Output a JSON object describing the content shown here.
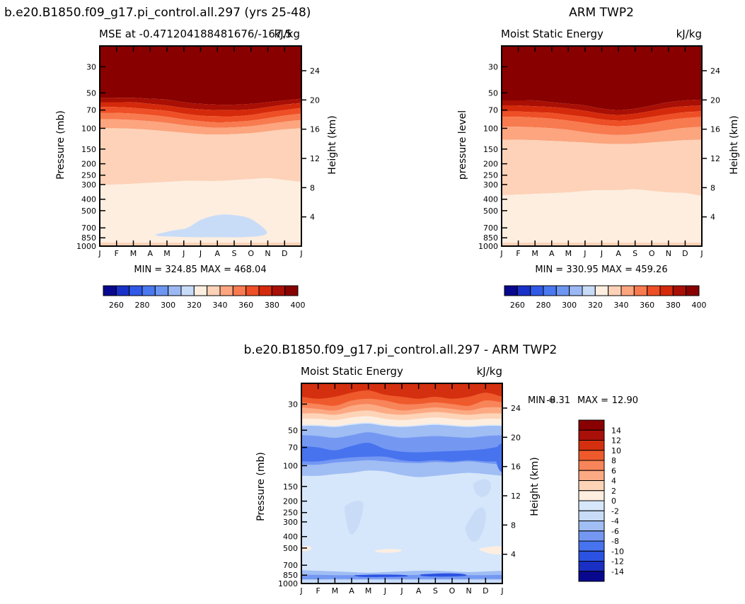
{
  "page": {
    "left_title": "b.e20.B1850.f09_g17.pi_control.all.297 (yrs 25-48)",
    "right_title": "ARM TWP2",
    "bottom_title": "b.e20.B1850.f09_g17.pi_control.all.297 - ARM TWP2"
  },
  "colors": {
    "abs_levels": [
      "#08088f",
      "#1931c8",
      "#2f59e6",
      "#4a78f0",
      "#6d96f2",
      "#9bb8f4",
      "#c8dcf8",
      "#fdeee0",
      "#fdd2b8",
      "#fca57f",
      "#f87a4f",
      "#ee4f26",
      "#d42a0b",
      "#a90f04",
      "#880000"
    ],
    "diff_levels": [
      "#08088f",
      "#1a2fc4",
      "#2b52e2",
      "#4873ef",
      "#7498f2",
      "#a0bdf4",
      "#c8dcf8",
      "#d6e7fb",
      "#fdeee0",
      "#fdd4b8",
      "#fcaa84",
      "#f8845a",
      "#ef5a2c",
      "#d4300f",
      "#a9100a",
      "#880000"
    ]
  },
  "chart_data": [
    {
      "type": "heatmap",
      "name": "model",
      "subtitle_left": "MSE at -0.471204188481676/-167.5",
      "subtitle_right": "kJ/kg",
      "ylabel": "Pressure (mb)",
      "ylabel_right": "Height (km)",
      "x_ticks": [
        "J",
        "F",
        "M",
        "A",
        "M",
        "J",
        "J",
        "A",
        "S",
        "O",
        "N",
        "D",
        "J"
      ],
      "y_ticks": [
        "30",
        "50",
        "70",
        "100",
        "150",
        "200",
        "250",
        "300",
        "400",
        "500",
        "700",
        "850",
        "1000"
      ],
      "y_right_ticks": [
        "24",
        "20",
        "16",
        "12",
        "8",
        "4"
      ],
      "min": "324.85",
      "max": "468.04",
      "stats": "MIN = 324.85  MAX = 468.04",
      "ylim_mb": [
        1000,
        20
      ],
      "contour_levels": [
        260,
        270,
        280,
        290,
        300,
        310,
        320,
        330,
        340,
        350,
        360,
        370,
        380,
        390,
        400
      ],
      "bands": [
        {
          "color_index": 14,
          "top": [
            20,
            20,
            20,
            20,
            20,
            20,
            20,
            20,
            20,
            20,
            20,
            20,
            20
          ],
          "bottom": [
            55,
            55,
            55,
            56,
            57,
            60,
            62,
            63,
            63,
            62,
            60,
            58,
            56
          ]
        },
        {
          "color_index": 13,
          "top": [
            55,
            55,
            55,
            56,
            57,
            60,
            62,
            63,
            63,
            62,
            60,
            58,
            56
          ],
          "bottom": [
            60,
            60,
            60,
            62,
            64,
            67,
            69,
            70,
            70,
            69,
            66,
            63,
            61
          ]
        },
        {
          "color_index": 12,
          "top": [
            60,
            60,
            60,
            62,
            64,
            67,
            69,
            70,
            70,
            69,
            66,
            63,
            61
          ],
          "bottom": [
            66,
            66,
            67,
            69,
            71,
            75,
            78,
            79,
            79,
            77,
            73,
            70,
            67
          ]
        },
        {
          "color_index": 11,
          "top": [
            66,
            66,
            67,
            69,
            71,
            75,
            78,
            79,
            79,
            77,
            73,
            70,
            67
          ],
          "bottom": [
            74,
            74,
            75,
            77,
            80,
            84,
            87,
            89,
            88,
            86,
            82,
            78,
            75
          ]
        },
        {
          "color_index": 10,
          "top": [
            74,
            74,
            75,
            77,
            80,
            84,
            87,
            89,
            88,
            86,
            82,
            78,
            75
          ],
          "bottom": [
            84,
            84,
            85,
            87,
            90,
            94,
            97,
            99,
            98,
            96,
            92,
            88,
            85
          ]
        },
        {
          "color_index": 9,
          "top": [
            84,
            84,
            85,
            87,
            90,
            94,
            97,
            99,
            98,
            96,
            92,
            88,
            85
          ],
          "bottom": [
            100,
            100,
            101,
            103,
            106,
            109,
            112,
            113,
            112,
            110,
            106,
            102,
            100
          ]
        },
        {
          "color_index": 8,
          "top": [
            100,
            100,
            101,
            103,
            106,
            109,
            112,
            113,
            112,
            110,
            106,
            102,
            100
          ],
          "bottom": [
            300,
            300,
            295,
            290,
            285,
            280,
            280,
            280,
            275,
            270,
            265,
            275,
            285
          ]
        },
        {
          "color_index": 7,
          "top": [
            300,
            300,
            295,
            290,
            285,
            280,
            280,
            280,
            275,
            270,
            265,
            275,
            285
          ],
          "bottom": [
            930,
            930,
            930,
            930,
            930,
            930,
            930,
            930,
            930,
            930,
            930,
            930,
            930
          ]
        },
        {
          "color_index": 8,
          "top": [
            930,
            930,
            930,
            930,
            930,
            930,
            930,
            930,
            930,
            930,
            930,
            930,
            930
          ],
          "bottom": [
            1000,
            1000,
            1000,
            1000,
            1000,
            1000,
            1000,
            1000,
            1000,
            1000,
            1000,
            1000,
            1000
          ]
        }
      ],
      "blob_color_index": 6,
      "blob": [
        [
          3.4,
          790
        ],
        [
          4.3,
          740
        ],
        [
          5.2,
          700
        ],
        [
          6,
          600
        ],
        [
          7,
          545
        ],
        [
          8,
          545
        ],
        [
          9,
          590
        ],
        [
          9.9,
          740
        ],
        [
          9.7,
          810
        ],
        [
          8.5,
          840
        ],
        [
          7,
          840
        ],
        [
          5.5,
          840
        ],
        [
          4.3,
          830
        ],
        [
          3.5,
          820
        ]
      ],
      "colorbar_labels": [
        "260",
        "280",
        "300",
        "320",
        "340",
        "360",
        "380",
        "400"
      ]
    },
    {
      "type": "heatmap",
      "name": "obs",
      "subtitle_left": "Moist Static Energy",
      "subtitle_right": "kJ/kg",
      "ylabel": "pressure level",
      "ylabel_right": "Height (km)",
      "x_ticks": [
        "J",
        "F",
        "M",
        "A",
        "M",
        "J",
        "J",
        "A",
        "S",
        "O",
        "N",
        "D",
        "J"
      ],
      "y_ticks": [
        "30",
        "50",
        "70",
        "100",
        "150",
        "200",
        "250",
        "300",
        "400",
        "500",
        "700",
        "850",
        "1000"
      ],
      "y_right_ticks": [
        "24",
        "20",
        "16",
        "12",
        "8",
        "4"
      ],
      "min": "330.95",
      "max": "459.26",
      "stats": "MIN = 330.95  MAX = 459.26",
      "ylim_mb": [
        1000,
        20
      ],
      "contour_levels": [
        260,
        270,
        280,
        290,
        300,
        310,
        320,
        330,
        340,
        350,
        360,
        370,
        380,
        390,
        400
      ],
      "bands": [
        {
          "color_index": 14,
          "top": [
            20,
            20,
            20,
            20,
            20,
            20,
            20,
            20,
            20,
            20,
            20,
            20,
            20
          ],
          "bottom": [
            58,
            58,
            58,
            60,
            62,
            64,
            68,
            70,
            68,
            64,
            60,
            58,
            57
          ]
        },
        {
          "color_index": 13,
          "top": [
            58,
            58,
            58,
            60,
            62,
            64,
            68,
            70,
            68,
            64,
            60,
            58,
            57
          ],
          "bottom": [
            64,
            64,
            65,
            66,
            68,
            71,
            75,
            77,
            75,
            71,
            67,
            65,
            64
          ]
        },
        {
          "color_index": 12,
          "top": [
            64,
            64,
            65,
            66,
            68,
            71,
            75,
            77,
            75,
            71,
            67,
            65,
            64
          ],
          "bottom": [
            72,
            72,
            73,
            74,
            77,
            80,
            84,
            86,
            84,
            80,
            76,
            73,
            72
          ]
        },
        {
          "color_index": 11,
          "top": [
            72,
            72,
            73,
            74,
            77,
            80,
            84,
            86,
            84,
            80,
            76,
            73,
            72
          ],
          "bottom": [
            80,
            80,
            81,
            83,
            86,
            90,
            94,
            96,
            94,
            90,
            85,
            82,
            80
          ]
        },
        {
          "color_index": 10,
          "top": [
            80,
            80,
            81,
            83,
            86,
            90,
            94,
            96,
            94,
            90,
            85,
            82,
            80
          ],
          "bottom": [
            97,
            97,
            98,
            100,
            103,
            108,
            112,
            114,
            112,
            108,
            103,
            99,
            97
          ]
        },
        {
          "color_index": 9,
          "top": [
            97,
            97,
            98,
            100,
            103,
            108,
            112,
            114,
            112,
            108,
            103,
            99,
            97
          ],
          "bottom": [
            125,
            125,
            126,
            128,
            130,
            132,
            135,
            136,
            135,
            132,
            129,
            126,
            125
          ]
        },
        {
          "color_index": 8,
          "top": [
            125,
            125,
            126,
            128,
            130,
            132,
            135,
            136,
            135,
            132,
            129,
            126,
            125
          ],
          "bottom": [
            370,
            365,
            360,
            355,
            350,
            340,
            335,
            335,
            330,
            340,
            350,
            355,
            375
          ]
        },
        {
          "color_index": 7,
          "top": [
            370,
            365,
            360,
            355,
            350,
            340,
            335,
            335,
            330,
            340,
            350,
            355,
            375
          ],
          "bottom": [
            935,
            935,
            930,
            930,
            930,
            930,
            930,
            930,
            930,
            930,
            930,
            930,
            935
          ]
        },
        {
          "color_index": 8,
          "top": [
            935,
            935,
            930,
            930,
            930,
            930,
            930,
            930,
            930,
            930,
            930,
            930,
            935
          ],
          "bottom": [
            1000,
            1000,
            1000,
            1000,
            1000,
            1000,
            1000,
            1000,
            1000,
            1000,
            1000,
            1000,
            1000
          ]
        }
      ],
      "colorbar_labels": [
        "260",
        "280",
        "300",
        "320",
        "340",
        "360",
        "380",
        "400"
      ]
    },
    {
      "type": "heatmap",
      "name": "difference",
      "subtitle_left": "Moist Static Energy",
      "subtitle_right": "kJ/kg",
      "ylabel": "Pressure (mb)",
      "ylabel_right": "Height (km)",
      "x_ticks": [
        "J",
        "F",
        "M",
        "A",
        "M",
        "J",
        "J",
        "A",
        "S",
        "O",
        "N",
        "D",
        "J"
      ],
      "y_ticks": [
        "30",
        "50",
        "70",
        "100",
        "150",
        "200",
        "250",
        "300",
        "400",
        "500",
        "700",
        "850",
        "1000"
      ],
      "y_right_ticks": [
        "24",
        "20",
        "16",
        "12",
        "8",
        "4"
      ],
      "min_label": "MIN =",
      "min": "-8.31",
      "max_label": "MAX =",
      "max": "12.90",
      "ylim_mb": [
        1000,
        20
      ],
      "contour_levels": [
        -14,
        -12,
        -10,
        -8,
        -6,
        -4,
        -2,
        0,
        2,
        4,
        6,
        8,
        10,
        12,
        14
      ],
      "colorbar_labels": [
        "-14",
        "-12",
        "-10",
        "-8",
        "-6",
        "-4",
        "-2",
        "0",
        "2",
        "4",
        "6",
        "8",
        "10",
        "12",
        "14"
      ]
    }
  ]
}
